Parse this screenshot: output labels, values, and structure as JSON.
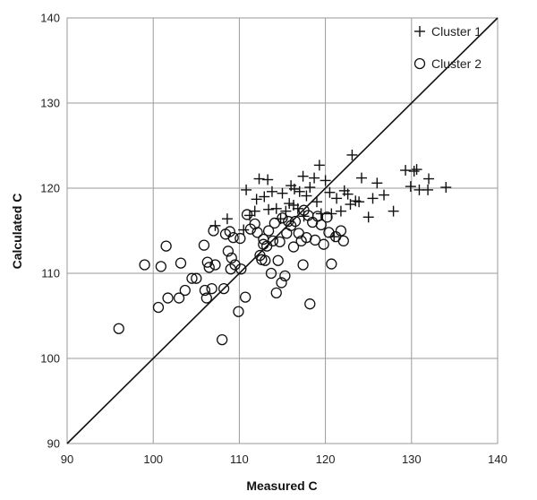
{
  "chart_data": {
    "type": "scatter",
    "title": "",
    "xlabel": "Measured C",
    "ylabel": "Calculated C",
    "xlim": [
      90,
      140
    ],
    "ylim": [
      90,
      140
    ],
    "xticks": [
      90,
      100,
      110,
      120,
      130,
      140
    ],
    "yticks": [
      90,
      100,
      110,
      120,
      130,
      140
    ],
    "grid": true,
    "legend": "top-right",
    "reference_line": {
      "from": [
        90,
        90
      ],
      "to": [
        140,
        140
      ]
    },
    "series": [
      {
        "name": "Cluster 1",
        "marker": "plus",
        "points": [
          [
            107.2,
            115.6
          ],
          [
            108.6,
            116.4
          ],
          [
            110.5,
            115.1
          ],
          [
            110.8,
            119.8
          ],
          [
            111.2,
            116.8
          ],
          [
            111.8,
            117.3
          ],
          [
            112.0,
            118.7
          ],
          [
            112.3,
            121.1
          ],
          [
            112.9,
            119.0
          ],
          [
            113.3,
            121.0
          ],
          [
            113.4,
            117.5
          ],
          [
            113.8,
            119.6
          ],
          [
            114.3,
            117.6
          ],
          [
            114.8,
            116.4
          ],
          [
            115.0,
            119.4
          ],
          [
            115.4,
            117.3
          ],
          [
            115.8,
            118.2
          ],
          [
            116.0,
            120.3
          ],
          [
            116.4,
            119.9
          ],
          [
            116.3,
            118.0
          ],
          [
            116.8,
            117.6
          ],
          [
            117.0,
            119.6
          ],
          [
            117.4,
            121.4
          ],
          [
            117.5,
            116.7
          ],
          [
            117.8,
            119.1
          ],
          [
            118.2,
            120.1
          ],
          [
            118.7,
            121.2
          ],
          [
            119.0,
            118.4
          ],
          [
            119.3,
            122.7
          ],
          [
            119.5,
            117.0
          ],
          [
            120.0,
            120.9
          ],
          [
            120.5,
            119.5
          ],
          [
            120.7,
            117.0
          ],
          [
            121.0,
            114.3
          ],
          [
            121.3,
            118.8
          ],
          [
            121.8,
            117.3
          ],
          [
            122.2,
            119.7
          ],
          [
            122.6,
            119.3
          ],
          [
            122.9,
            118.1
          ],
          [
            123.1,
            123.9
          ],
          [
            123.5,
            118.5
          ],
          [
            123.9,
            118.4
          ],
          [
            124.2,
            121.2
          ],
          [
            125.0,
            116.6
          ],
          [
            125.5,
            118.8
          ],
          [
            126.0,
            120.6
          ],
          [
            126.8,
            119.2
          ],
          [
            127.9,
            117.3
          ],
          [
            129.3,
            122.1
          ],
          [
            129.9,
            120.2
          ],
          [
            130.3,
            122.0
          ],
          [
            130.6,
            122.2
          ],
          [
            130.9,
            119.8
          ],
          [
            131.9,
            119.8
          ],
          [
            132.0,
            121.1
          ],
          [
            134.0,
            120.1
          ]
        ]
      },
      {
        "name": "Cluster 2",
        "marker": "circle",
        "points": [
          [
            96.0,
            103.5
          ],
          [
            99.0,
            111.0
          ],
          [
            100.6,
            106.0
          ],
          [
            100.9,
            110.8
          ],
          [
            101.5,
            113.2
          ],
          [
            101.7,
            107.1
          ],
          [
            103.0,
            107.1
          ],
          [
            103.2,
            111.2
          ],
          [
            103.7,
            108.0
          ],
          [
            104.5,
            109.4
          ],
          [
            105.0,
            109.4
          ],
          [
            105.9,
            113.3
          ],
          [
            106.0,
            108.0
          ],
          [
            106.2,
            107.1
          ],
          [
            106.3,
            111.3
          ],
          [
            106.5,
            110.7
          ],
          [
            106.8,
            108.2
          ],
          [
            107.0,
            115.0
          ],
          [
            107.2,
            111.0
          ],
          [
            108.0,
            102.2
          ],
          [
            108.2,
            108.2
          ],
          [
            108.4,
            114.6
          ],
          [
            108.7,
            112.6
          ],
          [
            108.9,
            114.9
          ],
          [
            109.1,
            111.8
          ],
          [
            109.0,
            110.5
          ],
          [
            109.3,
            114.2
          ],
          [
            109.5,
            111.0
          ],
          [
            109.9,
            105.5
          ],
          [
            110.2,
            110.5
          ],
          [
            110.1,
            114.1
          ],
          [
            110.7,
            107.2
          ],
          [
            110.9,
            116.9
          ],
          [
            111.3,
            115.2
          ],
          [
            111.8,
            115.8
          ],
          [
            112.1,
            114.8
          ],
          [
            112.4,
            112.1
          ],
          [
            112.6,
            111.6
          ],
          [
            112.8,
            114.0
          ],
          [
            112.8,
            113.4
          ],
          [
            113.0,
            111.5
          ],
          [
            113.2,
            113.2
          ],
          [
            113.4,
            115.0
          ],
          [
            113.7,
            110.0
          ],
          [
            113.9,
            113.8
          ],
          [
            114.1,
            115.9
          ],
          [
            114.3,
            107.7
          ],
          [
            114.5,
            111.5
          ],
          [
            114.7,
            113.7
          ],
          [
            114.9,
            108.9
          ],
          [
            115.0,
            116.5
          ],
          [
            115.3,
            109.7
          ],
          [
            115.5,
            114.7
          ],
          [
            115.7,
            116.1
          ],
          [
            116.0,
            115.6
          ],
          [
            116.3,
            113.1
          ],
          [
            116.5,
            116.1
          ],
          [
            116.9,
            114.7
          ],
          [
            117.2,
            113.8
          ],
          [
            117.4,
            111.0
          ],
          [
            117.5,
            117.4
          ],
          [
            117.8,
            114.2
          ],
          [
            118.0,
            116.8
          ],
          [
            118.2,
            106.4
          ],
          [
            118.5,
            116.0
          ],
          [
            118.8,
            113.9
          ],
          [
            119.1,
            116.7
          ],
          [
            119.5,
            115.7
          ],
          [
            119.8,
            113.4
          ],
          [
            120.2,
            116.6
          ],
          [
            120.4,
            114.8
          ],
          [
            120.7,
            111.1
          ],
          [
            121.2,
            114.3
          ],
          [
            121.8,
            115.0
          ],
          [
            122.1,
            113.8
          ]
        ]
      }
    ]
  }
}
